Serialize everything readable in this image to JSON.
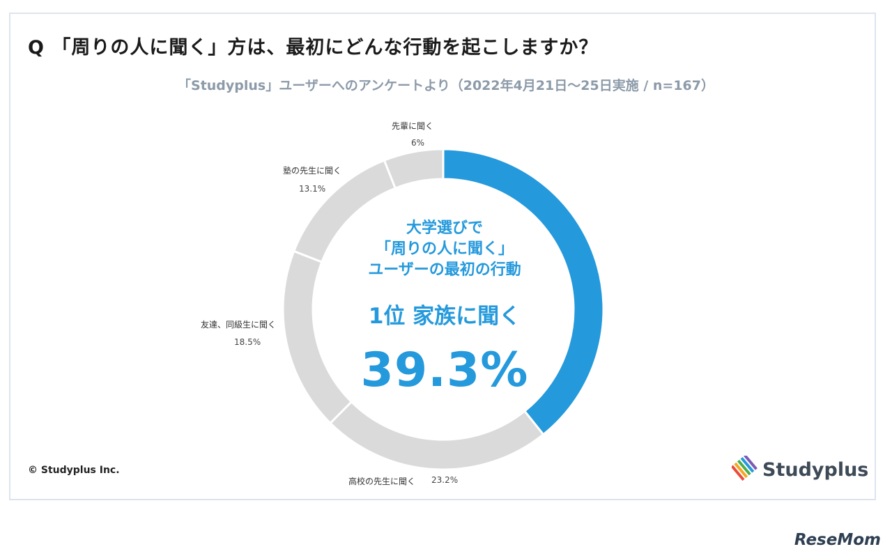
{
  "question": "Q 「周りの人に聞く」方は、最初にどんな行動を起こしますか？",
  "subtitle": "「Studyplus」ユーザーへのアンケートより（2022年4月21日〜25日実施 / n=167）",
  "center": {
    "line1": "大学選びで",
    "line2": "「周りの人に聞く」",
    "line3": "ユーザーの最初の行動",
    "rank": "1位 家族に聞く",
    "pct": "39.3%"
  },
  "chart_data": {
    "type": "pie",
    "donut": true,
    "slices": [
      {
        "label": "家族に聞く",
        "value": 39.3,
        "value_label": "",
        "color": "#2499dc"
      },
      {
        "label": "高校の先生に聞く",
        "value": 23.2,
        "value_label": "23.2%",
        "color": "#dadada"
      },
      {
        "label": "友達、同級生に聞く",
        "value": 18.5,
        "value_label": "18.5%",
        "color": "#dadada"
      },
      {
        "label": "塾の先生に聞く",
        "value": 13.1,
        "value_label": "13.1%",
        "color": "#dadada"
      },
      {
        "label": "先輩に聞く",
        "value": 6,
        "value_label": "6%",
        "color": "#dadada"
      }
    ]
  },
  "footer": {
    "copyright": "© Studyplus Inc.",
    "brand": "Studyplus"
  },
  "watermark": "ReseMom"
}
